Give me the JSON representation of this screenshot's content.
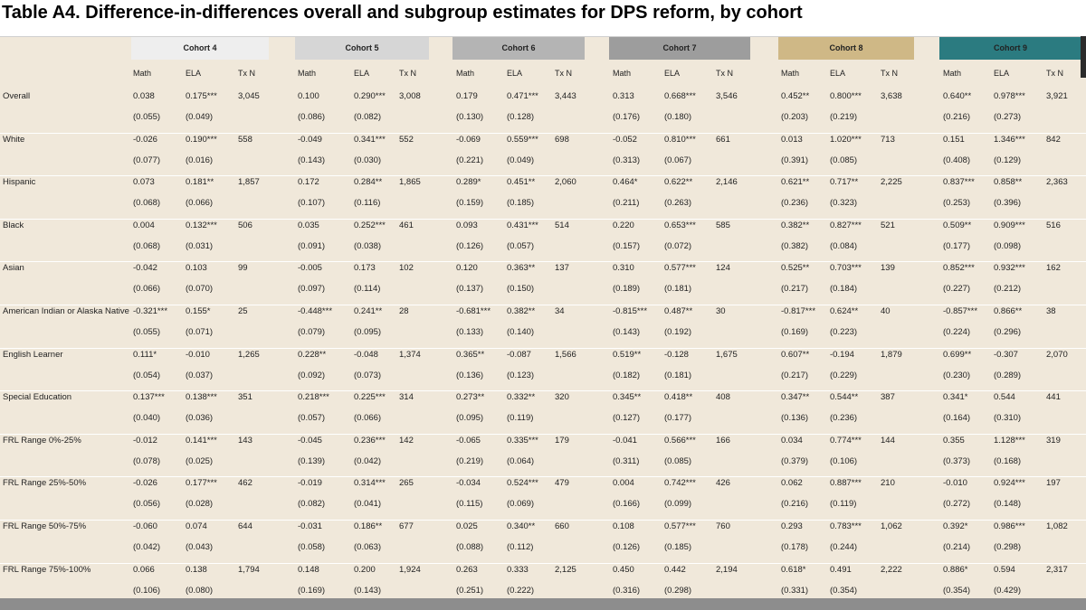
{
  "title": "Table A4. Difference-in-differences overall and subgroup estimates for DPS reform, by cohort",
  "cohorts": [
    {
      "label": "Cohort 4",
      "color": "#eeeeee"
    },
    {
      "label": "Cohort 5",
      "color": "#d6d6d6"
    },
    {
      "label": "Cohort 6",
      "color": "#b4b4b4"
    },
    {
      "label": "Cohort 7",
      "color": "#9d9d9d"
    },
    {
      "label": "Cohort 8",
      "color": "#cfb886"
    },
    {
      "label": "Cohort 9",
      "color": "#2b7b80"
    }
  ],
  "subheaders": [
    "Math",
    "ELA",
    "Tx N"
  ],
  "rows": [
    {
      "label": "Overall",
      "est": [
        [
          "0.038",
          "0.175***",
          "3,045"
        ],
        [
          "0.100",
          "0.290***",
          "3,008"
        ],
        [
          "0.179",
          "0.471***",
          "3,443"
        ],
        [
          "0.313",
          "0.668***",
          "3,546"
        ],
        [
          "0.452**",
          "0.800***",
          "3,638"
        ],
        [
          "0.640**",
          "0.978***",
          "3,921"
        ]
      ],
      "se": [
        [
          "(0.055)",
          "(0.049)"
        ],
        [
          "(0.086)",
          "(0.082)"
        ],
        [
          "(0.130)",
          "(0.128)"
        ],
        [
          "(0.176)",
          "(0.180)"
        ],
        [
          "(0.203)",
          "(0.219)"
        ],
        [
          "(0.216)",
          "(0.273)"
        ]
      ]
    },
    {
      "label": "White",
      "est": [
        [
          "-0.026",
          "0.190***",
          "558"
        ],
        [
          "-0.049",
          "0.341***",
          "552"
        ],
        [
          "-0.069",
          "0.559***",
          "698"
        ],
        [
          "-0.052",
          "0.810***",
          "661"
        ],
        [
          "0.013",
          "1.020***",
          "713"
        ],
        [
          "0.151",
          "1.346***",
          "842"
        ]
      ],
      "se": [
        [
          "(0.077)",
          "(0.016)"
        ],
        [
          "(0.143)",
          "(0.030)"
        ],
        [
          "(0.221)",
          "(0.049)"
        ],
        [
          "(0.313)",
          "(0.067)"
        ],
        [
          "(0.391)",
          "(0.085)"
        ],
        [
          "(0.408)",
          "(0.129)"
        ]
      ]
    },
    {
      "label": "Hispanic",
      "est": [
        [
          "0.073",
          "0.181**",
          "1,857"
        ],
        [
          "0.172",
          "0.284**",
          "1,865"
        ],
        [
          "0.289*",
          "0.451**",
          "2,060"
        ],
        [
          "0.464*",
          "0.622**",
          "2,146"
        ],
        [
          "0.621**",
          "0.717**",
          "2,225"
        ],
        [
          "0.837***",
          "0.858**",
          "2,363"
        ]
      ],
      "se": [
        [
          "(0.068)",
          "(0.066)"
        ],
        [
          "(0.107)",
          "(0.116)"
        ],
        [
          "(0.159)",
          "(0.185)"
        ],
        [
          "(0.211)",
          "(0.263)"
        ],
        [
          "(0.236)",
          "(0.323)"
        ],
        [
          "(0.253)",
          "(0.396)"
        ]
      ]
    },
    {
      "label": "Black",
      "est": [
        [
          "0.004",
          "0.132***",
          "506"
        ],
        [
          "0.035",
          "0.252***",
          "461"
        ],
        [
          "0.093",
          "0.431***",
          "514"
        ],
        [
          "0.220",
          "0.653***",
          "585"
        ],
        [
          "0.382**",
          "0.827***",
          "521"
        ],
        [
          "0.509**",
          "0.909***",
          "516"
        ]
      ],
      "se": [
        [
          "(0.068)",
          "(0.031)"
        ],
        [
          "(0.091)",
          "(0.038)"
        ],
        [
          "(0.126)",
          "(0.057)"
        ],
        [
          "(0.157)",
          "(0.072)"
        ],
        [
          "(0.382)",
          "(0.084)"
        ],
        [
          "(0.177)",
          "(0.098)"
        ]
      ]
    },
    {
      "label": "Asian",
      "est": [
        [
          "-0.042",
          "0.103",
          "99"
        ],
        [
          "-0.005",
          "0.173",
          "102"
        ],
        [
          "0.120",
          "0.363**",
          "137"
        ],
        [
          "0.310",
          "0.577***",
          "124"
        ],
        [
          "0.525**",
          "0.703***",
          "139"
        ],
        [
          "0.852***",
          "0.932***",
          "162"
        ]
      ],
      "se": [
        [
          "(0.066)",
          "(0.070)"
        ],
        [
          "(0.097)",
          "(0.114)"
        ],
        [
          "(0.137)",
          "(0.150)"
        ],
        [
          "(0.189)",
          "(0.181)"
        ],
        [
          "(0.217)",
          "(0.184)"
        ],
        [
          "(0.227)",
          "(0.212)"
        ]
      ]
    },
    {
      "label": "American Indian or Alaska Native",
      "est": [
        [
          "-0.321***",
          "0.155*",
          "25"
        ],
        [
          "-0.448***",
          "0.241**",
          "28"
        ],
        [
          "-0.681***",
          "0.382**",
          "34"
        ],
        [
          "-0.815***",
          "0.487**",
          "30"
        ],
        [
          "-0.817***",
          "0.624**",
          "40"
        ],
        [
          "-0.857***",
          "0.866**",
          "38"
        ]
      ],
      "se": [
        [
          "(0.055)",
          "(0.071)"
        ],
        [
          "(0.079)",
          "(0.095)"
        ],
        [
          "(0.133)",
          "(0.140)"
        ],
        [
          "(0.143)",
          "(0.192)"
        ],
        [
          "(0.169)",
          "(0.223)"
        ],
        [
          "(0.224)",
          "(0.296)"
        ]
      ]
    },
    {
      "label": "English Learner",
      "est": [
        [
          "0.111*",
          "-0.010",
          "1,265"
        ],
        [
          "0.228**",
          "-0.048",
          "1,374"
        ],
        [
          "0.365**",
          "-0.087",
          "1,566"
        ],
        [
          "0.519**",
          "-0.128",
          "1,675"
        ],
        [
          "0.607**",
          "-0.194",
          "1,879"
        ],
        [
          "0.699**",
          "-0.307",
          "2,070"
        ]
      ],
      "se": [
        [
          "(0.054)",
          "(0.037)"
        ],
        [
          "(0.092)",
          "(0.073)"
        ],
        [
          "(0.136)",
          "(0.123)"
        ],
        [
          "(0.182)",
          "(0.181)"
        ],
        [
          "(0.217)",
          "(0.229)"
        ],
        [
          "(0.230)",
          "(0.289)"
        ]
      ]
    },
    {
      "label": "Special Education",
      "est": [
        [
          "0.137***",
          "0.138***",
          "351"
        ],
        [
          "0.218***",
          "0.225***",
          "314"
        ],
        [
          "0.273**",
          "0.332**",
          "320"
        ],
        [
          "0.345**",
          "0.418**",
          "408"
        ],
        [
          "0.347**",
          "0.544**",
          "387"
        ],
        [
          "0.341*",
          "0.544",
          "441"
        ]
      ],
      "se": [
        [
          "(0.040)",
          "(0.036)"
        ],
        [
          "(0.057)",
          "(0.066)"
        ],
        [
          "(0.095)",
          "(0.119)"
        ],
        [
          "(0.127)",
          "(0.177)"
        ],
        [
          "(0.136)",
          "(0.236)"
        ],
        [
          "(0.164)",
          "(0.310)"
        ]
      ]
    },
    {
      "label": "FRL Range 0%-25%",
      "est": [
        [
          "-0.012",
          "0.141***",
          "143"
        ],
        [
          "-0.045",
          "0.236***",
          "142"
        ],
        [
          "-0.065",
          "0.335***",
          "179"
        ],
        [
          "-0.041",
          "0.566***",
          "166"
        ],
        [
          "0.034",
          "0.774***",
          "144"
        ],
        [
          "0.355",
          "1.128***",
          "319"
        ]
      ],
      "se": [
        [
          "(0.078)",
          "(0.025)"
        ],
        [
          "(0.139)",
          "(0.042)"
        ],
        [
          "(0.219)",
          "(0.064)"
        ],
        [
          "(0.311)",
          "(0.085)"
        ],
        [
          "(0.379)",
          "(0.106)"
        ],
        [
          "(0.373)",
          "(0.168)"
        ]
      ]
    },
    {
      "label": "FRL Range 25%-50%",
      "est": [
        [
          "-0.026",
          "0.177***",
          "462"
        ],
        [
          "-0.019",
          "0.314***",
          "265"
        ],
        [
          "-0.034",
          "0.524***",
          "479"
        ],
        [
          "0.004",
          "0.742***",
          "426"
        ],
        [
          "0.062",
          "0.887***",
          "210"
        ],
        [
          "-0.010",
          "0.924***",
          "197"
        ]
      ],
      "se": [
        [
          "(0.056)",
          "(0.028)"
        ],
        [
          "(0.082)",
          "(0.041)"
        ],
        [
          "(0.115)",
          "(0.069)"
        ],
        [
          "(0.166)",
          "(0.099)"
        ],
        [
          "(0.216)",
          "(0.119)"
        ],
        [
          "(0.272)",
          "(0.148)"
        ]
      ]
    },
    {
      "label": "FRL Range 50%-75%",
      "est": [
        [
          "-0.060",
          "0.074",
          "644"
        ],
        [
          "-0.031",
          "0.186**",
          "677"
        ],
        [
          "0.025",
          "0.340**",
          "660"
        ],
        [
          "0.108",
          "0.577***",
          "760"
        ],
        [
          "0.293",
          "0.783***",
          "1,062"
        ],
        [
          "0.392*",
          "0.986***",
          "1,082"
        ]
      ],
      "se": [
        [
          "(0.042)",
          "(0.043)"
        ],
        [
          "(0.058)",
          "(0.063)"
        ],
        [
          "(0.088)",
          "(0.112)"
        ],
        [
          "(0.126)",
          "(0.185)"
        ],
        [
          "(0.178)",
          "(0.244)"
        ],
        [
          "(0.214)",
          "(0.298)"
        ]
      ]
    },
    {
      "label": "FRL Range 75%-100%",
      "est": [
        [
          "0.066",
          "0.138",
          "1,794"
        ],
        [
          "0.148",
          "0.200",
          "1,924"
        ],
        [
          "0.263",
          "0.333",
          "2,125"
        ],
        [
          "0.450",
          "0.442",
          "2,194"
        ],
        [
          "0.618*",
          "0.491",
          "2,222"
        ],
        [
          "0.886*",
          "0.594",
          "2,317"
        ]
      ],
      "se": [
        [
          "(0.106)",
          "(0.080)"
        ],
        [
          "(0.169)",
          "(0.143)"
        ],
        [
          "(0.251)",
          "(0.222)"
        ],
        [
          "(0.316)",
          "(0.298)"
        ],
        [
          "(0.331)",
          "(0.354)"
        ],
        [
          "(0.354)",
          "(0.429)"
        ]
      ]
    }
  ]
}
